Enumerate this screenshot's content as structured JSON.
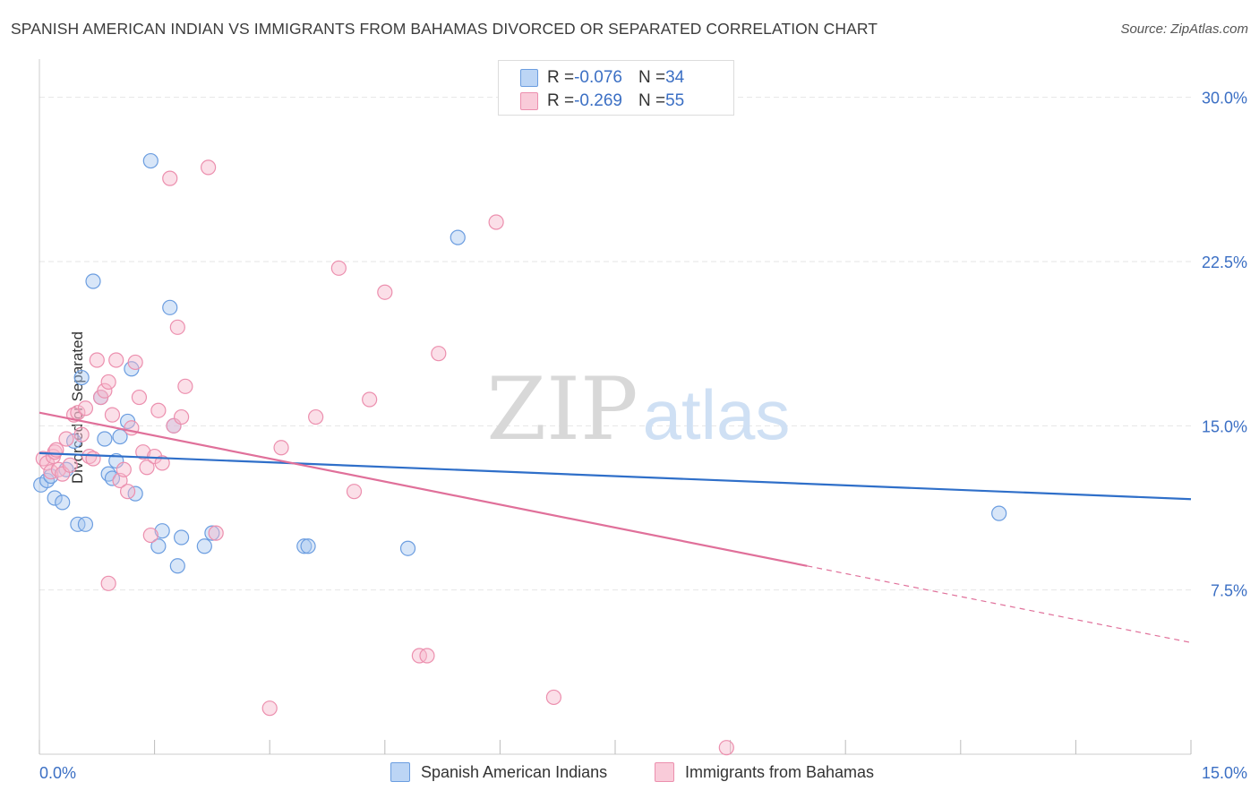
{
  "title": "SPANISH AMERICAN INDIAN VS IMMIGRANTS FROM BAHAMAS DIVORCED OR SEPARATED CORRELATION CHART",
  "source": "Source: ZipAtlas.com",
  "watermark": {
    "zip": "ZIP",
    "atlas": "atlas"
  },
  "colors": {
    "blue_fill": "#a9c8f0",
    "blue_stroke": "#6b9de0",
    "blue_line": "#2f6fc9",
    "pink_fill": "#f6b8cb",
    "pink_stroke": "#ec8fae",
    "pink_line": "#e0709a",
    "grid": "#e6e6e6",
    "tick_text": "#3b6fc4"
  },
  "legend_top": {
    "rows": [
      {
        "r_label": "R = ",
        "r_value": "-0.076",
        "n_label": "N = ",
        "n_value": "34"
      },
      {
        "r_label": "R = ",
        "r_value": "-0.269",
        "n_label": "N = ",
        "n_value": "55"
      }
    ]
  },
  "chart_data": {
    "type": "scatter",
    "title": "SPANISH AMERICAN INDIAN VS IMMIGRANTS FROM BAHAMAS DIVORCED OR SEPARATED CORRELATION CHART",
    "xlabel": "",
    "ylabel": "Divorced or Separated",
    "xlim": [
      0,
      15
    ],
    "ylim": [
      0,
      31.5
    ],
    "x_tick_labels": [
      "0.0%",
      "15.0%"
    ],
    "y_ticks": [
      7.5,
      15.0,
      22.5,
      30.0
    ],
    "y_tick_labels": [
      "7.5%",
      "15.0%",
      "22.5%",
      "30.0%"
    ],
    "grid": true,
    "legend_position": "bottom",
    "series": [
      {
        "name": "Spanish American Indians",
        "color": "blue",
        "trend": {
          "x0": 0,
          "y0": 13.75,
          "x1": 15,
          "y1": 11.65,
          "solid_until": 15
        },
        "points": [
          [
            0.02,
            12.3
          ],
          [
            0.1,
            12.5
          ],
          [
            0.15,
            12.7
          ],
          [
            0.2,
            11.7
          ],
          [
            0.3,
            11.5
          ],
          [
            0.35,
            13.0
          ],
          [
            0.45,
            14.3
          ],
          [
            0.5,
            10.5
          ],
          [
            0.55,
            17.2
          ],
          [
            0.6,
            10.5
          ],
          [
            0.7,
            21.6
          ],
          [
            0.8,
            16.3
          ],
          [
            0.85,
            14.4
          ],
          [
            0.9,
            12.8
          ],
          [
            0.95,
            12.6
          ],
          [
            1.0,
            13.4
          ],
          [
            1.05,
            14.5
          ],
          [
            1.15,
            15.2
          ],
          [
            1.2,
            17.6
          ],
          [
            1.25,
            11.9
          ],
          [
            1.45,
            27.1
          ],
          [
            1.55,
            9.5
          ],
          [
            1.6,
            10.2
          ],
          [
            1.7,
            20.4
          ],
          [
            1.75,
            15.0
          ],
          [
            1.8,
            8.6
          ],
          [
            1.85,
            9.9
          ],
          [
            2.15,
            9.5
          ],
          [
            2.25,
            10.1
          ],
          [
            3.45,
            9.5
          ],
          [
            3.5,
            9.5
          ],
          [
            4.8,
            9.4
          ],
          [
            5.45,
            23.6
          ],
          [
            12.5,
            11.0
          ]
        ]
      },
      {
        "name": "Immigrants from Bahamas",
        "color": "pink",
        "trend": {
          "x0": 0,
          "y0": 15.6,
          "x1": 15,
          "y1": 5.1,
          "solid_until": 10.0
        },
        "points": [
          [
            0.05,
            13.5
          ],
          [
            0.1,
            13.3
          ],
          [
            0.15,
            12.9
          ],
          [
            0.18,
            13.6
          ],
          [
            0.2,
            13.8
          ],
          [
            0.22,
            13.9
          ],
          [
            0.25,
            13.0
          ],
          [
            0.3,
            12.8
          ],
          [
            0.35,
            14.4
          ],
          [
            0.4,
            13.2
          ],
          [
            0.45,
            15.5
          ],
          [
            0.5,
            15.6
          ],
          [
            0.55,
            14.6
          ],
          [
            0.6,
            15.8
          ],
          [
            0.65,
            13.6
          ],
          [
            0.7,
            13.5
          ],
          [
            0.75,
            18.0
          ],
          [
            0.8,
            16.3
          ],
          [
            0.85,
            16.6
          ],
          [
            0.9,
            17.0
          ],
          [
            0.95,
            15.5
          ],
          [
            1.0,
            18.0
          ],
          [
            1.05,
            12.5
          ],
          [
            1.1,
            13.0
          ],
          [
            1.15,
            12.0
          ],
          [
            1.2,
            14.9
          ],
          [
            1.25,
            17.9
          ],
          [
            1.3,
            16.3
          ],
          [
            1.35,
            13.8
          ],
          [
            1.4,
            13.1
          ],
          [
            1.45,
            10.0
          ],
          [
            1.5,
            13.6
          ],
          [
            1.55,
            15.7
          ],
          [
            1.6,
            13.3
          ],
          [
            1.7,
            26.3
          ],
          [
            1.75,
            15.0
          ],
          [
            1.8,
            19.5
          ],
          [
            1.85,
            15.4
          ],
          [
            1.9,
            16.8
          ],
          [
            2.2,
            26.8
          ],
          [
            2.3,
            10.1
          ],
          [
            0.9,
            7.8
          ],
          [
            3.15,
            14.0
          ],
          [
            3.0,
            2.1
          ],
          [
            3.6,
            15.4
          ],
          [
            3.9,
            22.2
          ],
          [
            4.1,
            12.0
          ],
          [
            4.3,
            16.2
          ],
          [
            4.5,
            21.1
          ],
          [
            4.95,
            4.5
          ],
          [
            5.05,
            4.5
          ],
          [
            5.2,
            18.3
          ],
          [
            5.95,
            24.3
          ],
          [
            6.7,
            2.6
          ],
          [
            8.95,
            0.3
          ]
        ]
      }
    ]
  },
  "legend_bottom": {
    "items": [
      {
        "label": "Spanish American Indians"
      },
      {
        "label": "Immigrants from Bahamas"
      }
    ]
  }
}
